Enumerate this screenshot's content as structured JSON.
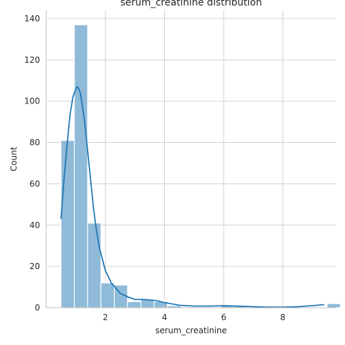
{
  "chart_data": {
    "type": "histogram",
    "title": "serum_creatinine distribution",
    "xlabel": "serum_creatinine",
    "ylabel": "Count",
    "xlim": [
      0.0,
      9.8
    ],
    "ylim": [
      0,
      144
    ],
    "xticks": [
      2,
      4,
      6,
      8
    ],
    "yticks": [
      0,
      20,
      40,
      60,
      80,
      100,
      120,
      140
    ],
    "grid": true,
    "bin_start": 0.5,
    "bin_width": 0.45,
    "counts": [
      81,
      137,
      41,
      12,
      11,
      3,
      4,
      3,
      1,
      0,
      0,
      0,
      1,
      1,
      0,
      0,
      0,
      0,
      0,
      0,
      2
    ],
    "kde": {
      "x": [
        0.5,
        0.6,
        0.7,
        0.8,
        0.9,
        1.0,
        1.05,
        1.1,
        1.15,
        1.2,
        1.3,
        1.4,
        1.5,
        1.6,
        1.7,
        1.8,
        2.0,
        2.2,
        2.5,
        2.8,
        3.0,
        3.3,
        3.7,
        4.0,
        4.5,
        5.0,
        5.5,
        6.0,
        6.5,
        7.0,
        7.5,
        8.0,
        8.5,
        9.0,
        9.4
      ],
      "y": [
        43,
        62,
        78,
        93,
        102,
        106,
        107,
        106,
        104,
        100,
        90,
        76,
        62,
        48,
        37,
        29,
        18,
        12,
        7,
        5,
        4,
        4,
        3.5,
        2.5,
        1.2,
        0.8,
        0.8,
        1.0,
        0.8,
        0.5,
        0.3,
        0.3,
        0.5,
        1.0,
        1.5
      ]
    },
    "colors": {
      "bar": "#8fbad8",
      "kde": "#1f77b4",
      "grid": "#d0d0d0"
    }
  }
}
